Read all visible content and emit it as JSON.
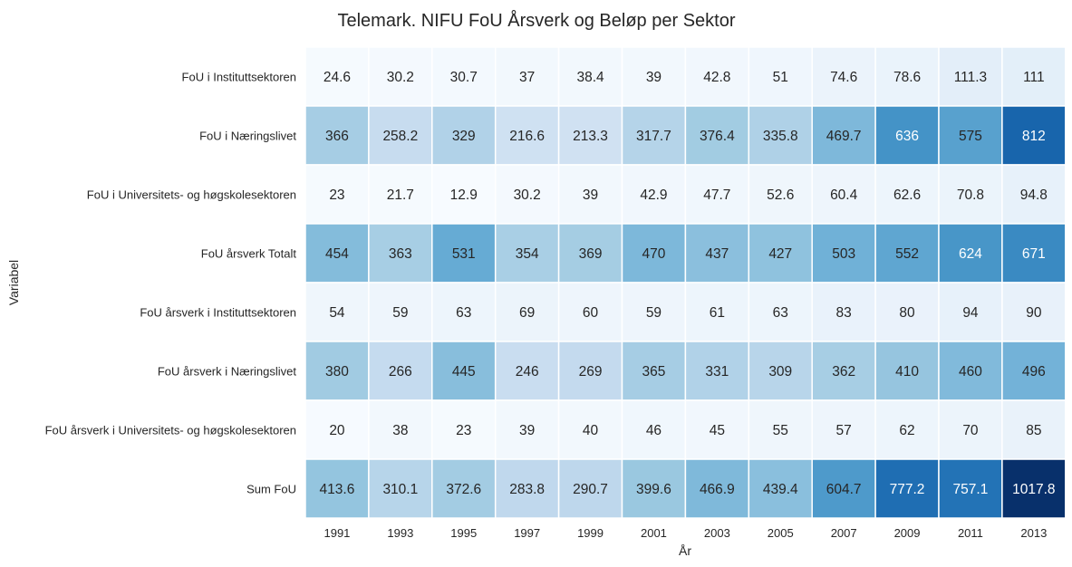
{
  "chart_data": {
    "type": "heatmap",
    "title": "Telemark. NIFU FoU Årsverk og Beløp per Sektor",
    "xlabel": "År",
    "ylabel": "Variabel",
    "columns": [
      "1991",
      "1993",
      "1995",
      "1997",
      "1999",
      "2001",
      "2003",
      "2005",
      "2007",
      "2009",
      "2011",
      "2013"
    ],
    "rows": [
      {
        "label": "FoU i Instituttsektoren",
        "values": [
          24.6,
          30.2,
          30.7,
          37,
          38.4,
          39,
          42.8,
          51,
          74.6,
          78.6,
          111.3,
          111
        ]
      },
      {
        "label": "FoU i Næringslivet",
        "values": [
          366,
          258.2,
          329,
          216.6,
          213.3,
          317.7,
          376.4,
          335.8,
          469.7,
          636,
          575,
          812
        ]
      },
      {
        "label": "FoU i Universitets- og høgskolesektoren",
        "values": [
          23,
          21.7,
          12.9,
          30.2,
          39,
          42.9,
          47.7,
          52.6,
          60.4,
          62.6,
          70.8,
          94.8
        ]
      },
      {
        "label": "FoU årsverk Totalt",
        "values": [
          454,
          363,
          531,
          354,
          369,
          470,
          437,
          427,
          503,
          552,
          624,
          671
        ]
      },
      {
        "label": "FoU årsverk i Instituttsektoren",
        "values": [
          54,
          59,
          63,
          69,
          60,
          59,
          61,
          63,
          83,
          80,
          94,
          90
        ]
      },
      {
        "label": "FoU årsverk i Næringslivet",
        "values": [
          380,
          266,
          445,
          246,
          269,
          365,
          331,
          309,
          362,
          410,
          460,
          496
        ]
      },
      {
        "label": "FoU årsverk i Universitets- og høgskolesektoren",
        "values": [
          20,
          38,
          23,
          39,
          40,
          46,
          45,
          55,
          57,
          62,
          70,
          85
        ]
      },
      {
        "label": "Sum FoU",
        "values": [
          413.6,
          310.1,
          372.6,
          283.8,
          290.7,
          399.6,
          466.9,
          439.4,
          604.7,
          777.2,
          757.1,
          1017.8
        ]
      }
    ],
    "colormap": "Blues",
    "value_range": [
      12.9,
      1017.8
    ],
    "grid_lines_color": "#ffffff",
    "legend": "none"
  }
}
